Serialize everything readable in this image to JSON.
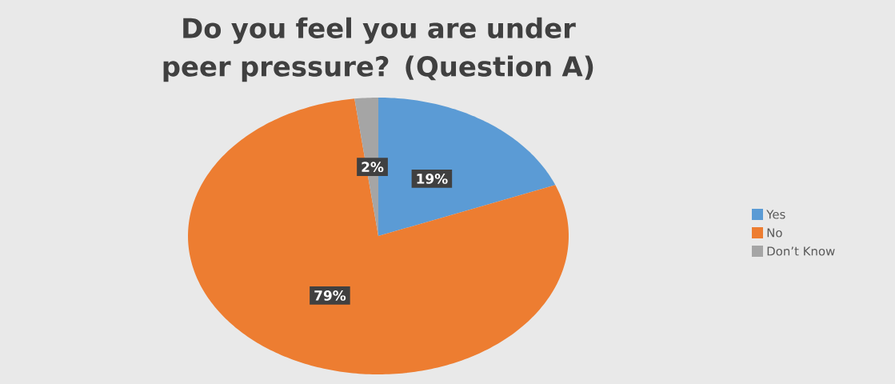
{
  "chart_data": {
    "type": "pie",
    "title": "Do you feel you are under peer pressure?  (Question A)",
    "categories": [
      "Yes",
      "No",
      "Don’t Know"
    ],
    "values": [
      19,
      79,
      2
    ],
    "colors": [
      "#5b9bd5",
      "#ed7d31",
      "#a5a5a5"
    ],
    "value_labels": [
      "19%",
      "79%",
      "2%"
    ],
    "legend": "right"
  }
}
